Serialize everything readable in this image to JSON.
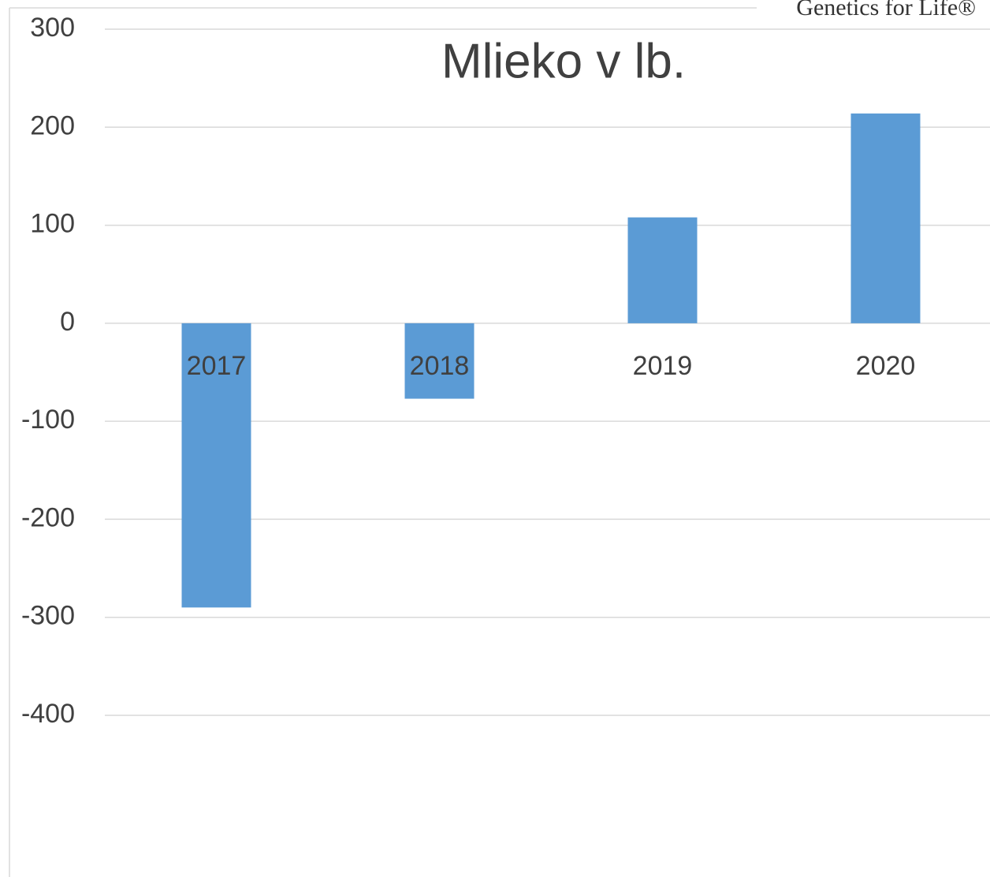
{
  "chart_data": {
    "type": "bar",
    "title": "Mlieko v lb.",
    "annotation": "Genetics for Life®",
    "categories": [
      "2017",
      "2018",
      "2019",
      "2020"
    ],
    "values": [
      -290,
      -77,
      108,
      214
    ],
    "color": "#5b9bd5",
    "ylim": [
      -400,
      300
    ],
    "yticks": [
      -400,
      -300,
      -200,
      -100,
      0,
      100,
      200,
      300
    ],
    "grid": true
  }
}
